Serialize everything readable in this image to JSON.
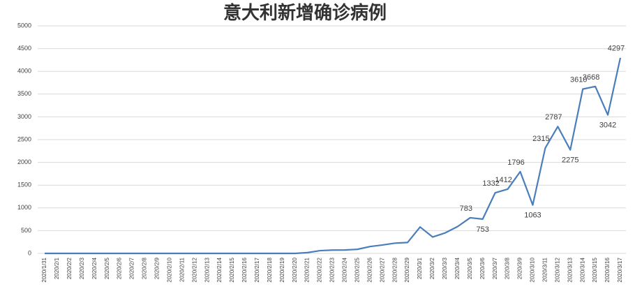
{
  "chart_data": {
    "type": "line",
    "title": "意大利新增确诊病例",
    "categories": [
      "2020/1/31",
      "2020/2/1",
      "2020/2/2",
      "2020/2/3",
      "2020/2/4",
      "2020/2/5",
      "2020/2/6",
      "2020/2/7",
      "2020/2/8",
      "2020/2/9",
      "2020/2/10",
      "2020/2/11",
      "2020/2/12",
      "2020/2/13",
      "2020/2/14",
      "2020/2/15",
      "2020/2/16",
      "2020/2/17",
      "2020/2/18",
      "2020/2/19",
      "2020/2/20",
      "2020/2/21",
      "2020/2/22",
      "2020/2/23",
      "2020/2/24",
      "2020/2/25",
      "2020/2/26",
      "2020/2/27",
      "2020/2/28",
      "2020/2/29",
      "2020/3/1",
      "2020/3/2",
      "2020/3/3",
      "2020/3/4",
      "2020/3/5",
      "2020/3/6",
      "2020/3/7",
      "2020/3/8",
      "2020/3/9",
      "2020/3/10",
      "2020/3/11",
      "2020/3/12",
      "2020/3/13",
      "2020/3/14",
      "2020/3/15",
      "2020/3/16",
      "2020/3/17"
    ],
    "series": [
      {
        "color": "#4a7ebb",
        "values": [
          0,
          0,
          0,
          0,
          0,
          0,
          0,
          0,
          0,
          0,
          0,
          0,
          0,
          0,
          0,
          0,
          0,
          0,
          0,
          0,
          0,
          17,
          60,
          73,
          75,
          90,
          150,
          185,
          225,
          240,
          580,
          360,
          450,
          590,
          783,
          753,
          1332,
          1412,
          1796,
          1063,
          2315,
          2787,
          2275,
          3610,
          3668,
          3042,
          4297
        ],
        "value_labels": [
          null,
          null,
          null,
          null,
          null,
          null,
          null,
          null,
          null,
          null,
          null,
          null,
          null,
          null,
          null,
          null,
          null,
          null,
          null,
          null,
          null,
          null,
          null,
          null,
          null,
          null,
          null,
          null,
          null,
          null,
          null,
          null,
          null,
          null,
          "783",
          "753",
          "1332",
          "1412",
          "1796",
          "1063",
          "2315",
          "2787",
          "2275",
          "3610",
          "3668",
          "3042",
          "4297"
        ]
      }
    ],
    "ylim": [
      0,
      5000
    ],
    "yticks": [
      0,
      500,
      1000,
      1500,
      2000,
      2500,
      3000,
      3500,
      4000,
      4500,
      5000
    ],
    "grid": true
  }
}
